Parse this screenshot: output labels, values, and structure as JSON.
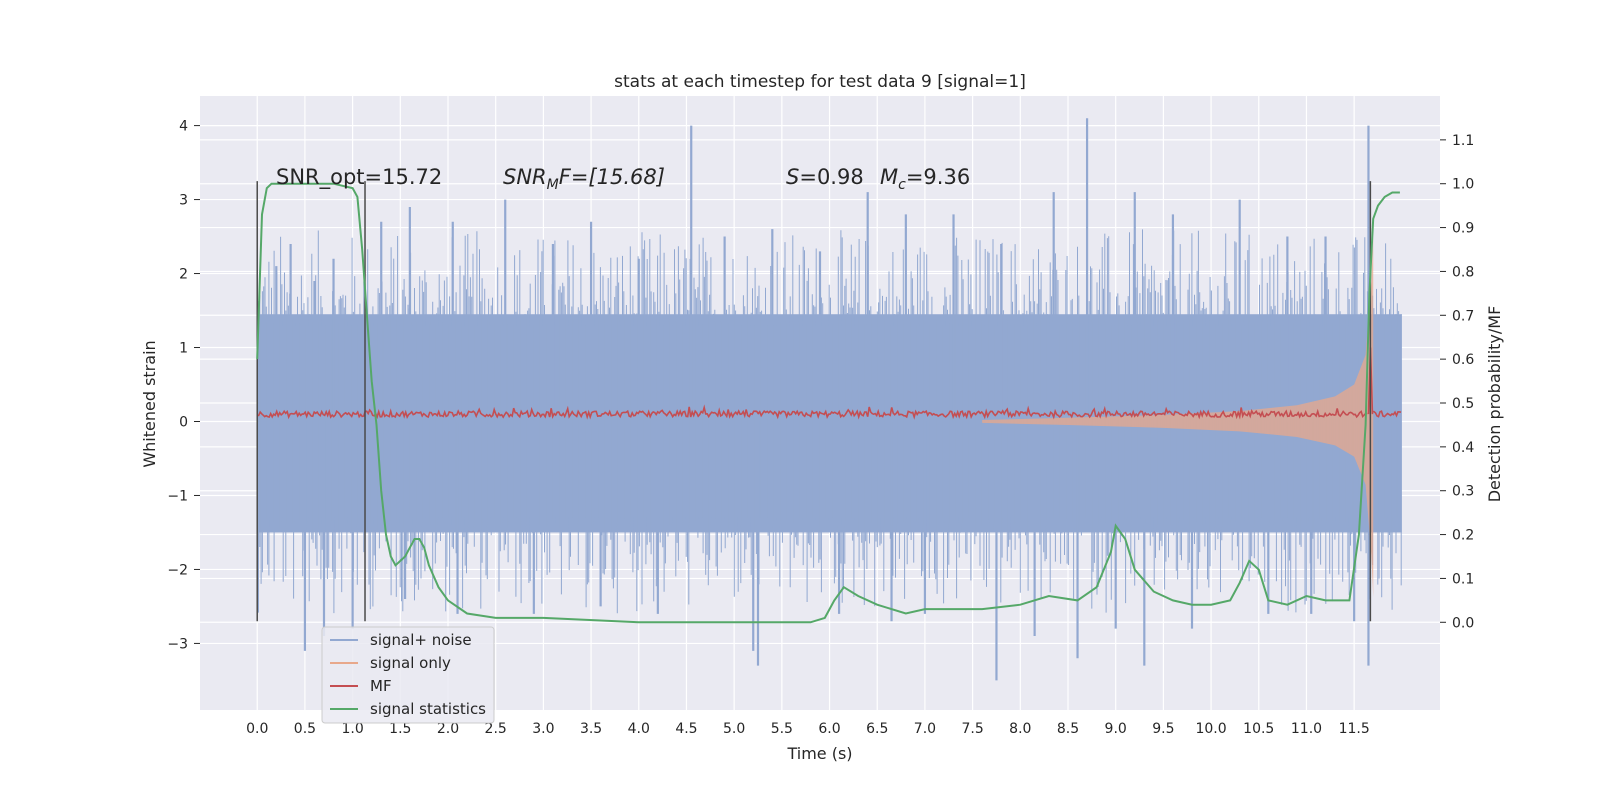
{
  "chart_data": {
    "type": "line",
    "title": "stats at each timestep for test data 9 [signal=1]",
    "xlabel": "Time (s)",
    "ylabel": "Whitened strain",
    "y2label": "Detection probability/MF",
    "xlim": [
      -0.6,
      12.4
    ],
    "ylim": [
      -3.9,
      4.4
    ],
    "y2lim": [
      -0.2,
      1.2
    ],
    "x_ticks": [
      "0.0",
      "0.5",
      "1.0",
      "1.5",
      "2.0",
      "2.5",
      "3.0",
      "3.5",
      "4.0",
      "4.5",
      "5.0",
      "5.5",
      "6.0",
      "6.5",
      "7.0",
      "7.5",
      "8.0",
      "8.5",
      "9.0",
      "9.5",
      "10.0",
      "10.5",
      "11.0",
      "11.5"
    ],
    "y_ticks": [
      "−3",
      "−2",
      "−1",
      "0",
      "1",
      "2",
      "3",
      "4"
    ],
    "y2_ticks": [
      "0.0",
      "0.1",
      "0.2",
      "0.3",
      "0.4",
      "0.5",
      "0.6",
      "0.7",
      "0.8",
      "0.9",
      "1.0",
      "1.1"
    ],
    "grid": true,
    "legend_position": "lower-left",
    "annotations": {
      "snr_opt": "SNR_opt=15.72",
      "snr_mf_sym": "SNR",
      "snr_mf_sub": "M",
      "snr_mf_rest": "F=[15.68]",
      "s_sym": "S",
      "s_rest": "=0.98",
      "mc_sym": "M",
      "mc_sub": "c",
      "mc_rest": "=9.36"
    },
    "vertical_markers_x": [
      0.0,
      1.13,
      11.67
    ],
    "series": [
      {
        "name": "signal+ noise",
        "color": "#92a8d1",
        "axis": "left",
        "envelope_x": [
          0.0,
          12.0
        ],
        "envelope_top_typical": 1.45,
        "envelope_bottom_typical": -1.5,
        "spikes": [
          [
            0.2,
            2.1
          ],
          [
            0.35,
            2.4
          ],
          [
            0.6,
            1.9
          ],
          [
            0.8,
            2.2
          ],
          [
            1.3,
            2.7
          ],
          [
            1.6,
            2.9
          ],
          [
            2.05,
            2.7
          ],
          [
            2.6,
            3.0
          ],
          [
            3.1,
            2.4
          ],
          [
            3.5,
            2.7
          ],
          [
            4.0,
            2.2
          ],
          [
            4.55,
            4.0
          ],
          [
            4.9,
            2.5
          ],
          [
            5.4,
            2.6
          ],
          [
            5.9,
            2.3
          ],
          [
            6.4,
            3.1
          ],
          [
            6.8,
            2.8
          ],
          [
            7.3,
            2.8
          ],
          [
            7.8,
            2.4
          ],
          [
            8.35,
            3.1
          ],
          [
            8.7,
            4.1
          ],
          [
            9.2,
            3.1
          ],
          [
            9.6,
            2.8
          ],
          [
            10.3,
            3.0
          ],
          [
            10.8,
            2.5
          ],
          [
            11.2,
            2.5
          ],
          [
            11.65,
            4.0
          ],
          [
            0.5,
            -3.1
          ],
          [
            0.7,
            -2.9
          ],
          [
            1.0,
            -2.8
          ],
          [
            1.55,
            -2.4
          ],
          [
            2.1,
            -2.6
          ],
          [
            2.9,
            -2.6
          ],
          [
            3.6,
            -2.5
          ],
          [
            4.2,
            -2.6
          ],
          [
            5.2,
            -3.1
          ],
          [
            5.25,
            -3.3
          ],
          [
            6.1,
            -2.6
          ],
          [
            6.65,
            -2.7
          ],
          [
            7.0,
            -2.6
          ],
          [
            7.75,
            -3.5
          ],
          [
            8.15,
            -2.9
          ],
          [
            8.6,
            -3.2
          ],
          [
            9.0,
            -2.8
          ],
          [
            9.3,
            -3.3
          ],
          [
            9.8,
            -2.8
          ],
          [
            10.6,
            -2.6
          ],
          [
            11.05,
            -2.6
          ],
          [
            11.5,
            -2.7
          ],
          [
            11.65,
            -3.3
          ]
        ]
      },
      {
        "name": "signal only",
        "color": "#e8a88b",
        "axis": "left",
        "x": [
          7.6,
          8.5,
          9.5,
          10.3,
          10.9,
          11.3,
          11.5,
          11.62,
          11.68,
          11.7
        ],
        "amplitude": [
          0.02,
          0.05,
          0.09,
          0.14,
          0.22,
          0.34,
          0.5,
          0.9,
          1.9,
          2.5
        ]
      },
      {
        "name": "MF",
        "color": "#c44e52",
        "axis": "left",
        "level": 0.1,
        "noise": 0.04
      },
      {
        "name": "signal statistics",
        "color": "#55a868",
        "axis": "right",
        "x": [
          0.0,
          0.05,
          0.1,
          0.15,
          0.2,
          0.25,
          0.4,
          0.6,
          0.8,
          1.0,
          1.05,
          1.1,
          1.15,
          1.2,
          1.25,
          1.3,
          1.35,
          1.4,
          1.45,
          1.5,
          1.55,
          1.6,
          1.65,
          1.7,
          1.75,
          1.8,
          1.9,
          2.0,
          2.2,
          2.5,
          3.0,
          4.0,
          5.0,
          5.5,
          5.8,
          5.95,
          6.05,
          6.15,
          6.3,
          6.5,
          6.8,
          7.0,
          7.3,
          7.6,
          8.0,
          8.3,
          8.6,
          8.8,
          8.95,
          9.0,
          9.1,
          9.2,
          9.4,
          9.6,
          9.8,
          10.0,
          10.2,
          10.3,
          10.4,
          10.5,
          10.6,
          10.8,
          11.0,
          11.2,
          11.45,
          11.55,
          11.62,
          11.66,
          11.7,
          11.75,
          11.82,
          11.9,
          11.98
        ],
        "y": [
          0.6,
          0.93,
          0.99,
          1.0,
          1.0,
          1.0,
          1.0,
          1.0,
          1.0,
          0.99,
          0.97,
          0.85,
          0.7,
          0.55,
          0.45,
          0.3,
          0.2,
          0.15,
          0.13,
          0.14,
          0.15,
          0.17,
          0.19,
          0.19,
          0.17,
          0.13,
          0.08,
          0.05,
          0.02,
          0.01,
          0.01,
          0.0,
          0.0,
          0.0,
          0.0,
          0.01,
          0.05,
          0.08,
          0.06,
          0.04,
          0.02,
          0.03,
          0.03,
          0.03,
          0.04,
          0.06,
          0.05,
          0.08,
          0.16,
          0.22,
          0.19,
          0.12,
          0.07,
          0.05,
          0.04,
          0.04,
          0.05,
          0.09,
          0.14,
          0.12,
          0.05,
          0.04,
          0.06,
          0.05,
          0.05,
          0.2,
          0.45,
          0.75,
          0.92,
          0.95,
          0.97,
          0.98,
          0.98
        ]
      }
    ]
  }
}
